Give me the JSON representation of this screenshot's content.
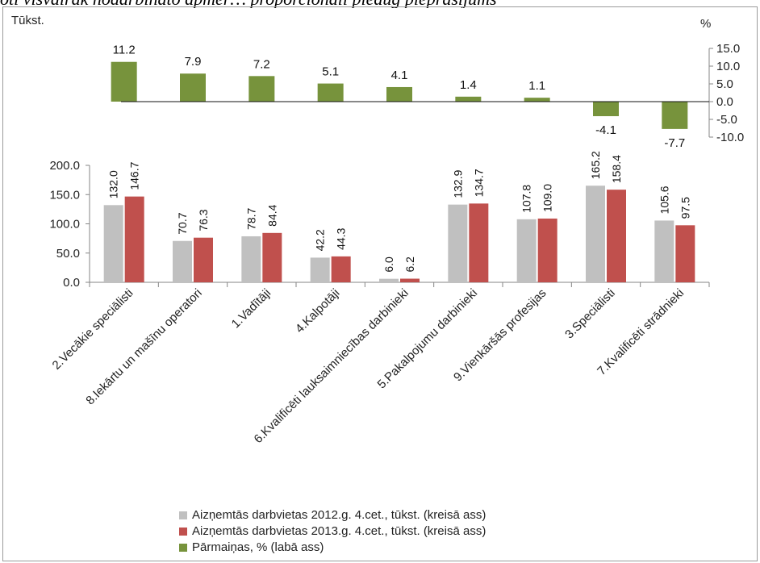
{
  "top_text": "oti visvairāk nodarbināto apmēr… proporcionāli pieaug pieprasījums",
  "chart_data": {
    "type": "bar",
    "left_axis_title": "Tūkst.",
    "right_axis_title": "%",
    "categories": [
      "2.Vecākie speciālisti",
      "8.Iekārtu un mašīnu operatori",
      "1.Vadītāji",
      "4.Kalpotāji",
      "6.Kvalificēti lauksaimniecības darbinieki",
      "5.Pakalpojumu darbinieki",
      "9.Vienkāršās  profesijas",
      "3.Speciālisti",
      "7.Kvalificēti strādnieki"
    ],
    "series": [
      {
        "name": "Aizņemtās darbvietas 2012.g. 4.cet., tūkst. (kreisā ass)",
        "axis": "left",
        "color": "#c0c0c0",
        "values": [
          132.0,
          70.7,
          78.7,
          42.2,
          6.0,
          132.9,
          107.8,
          165.2,
          105.6
        ],
        "labels": [
          "132.0",
          "70.7",
          "78.7",
          "42.2",
          "6.0",
          "132.9",
          "107.8",
          "165.2",
          "105.6"
        ]
      },
      {
        "name": "Aizņemtās darbvietas 2013.g. 4.cet., tūkst. (kreisā ass)",
        "axis": "left",
        "color": "#c0504d",
        "values": [
          146.7,
          76.3,
          84.4,
          44.3,
          6.2,
          134.7,
          109.0,
          158.4,
          97.5
        ],
        "labels": [
          "146.7",
          "76.3",
          "84.4",
          "44.3",
          "6.2",
          "134.7",
          "109.0",
          "158.4",
          "97.5"
        ]
      },
      {
        "name": "Pārmaiņas, % (labā ass)",
        "axis": "right",
        "color": "#77933c",
        "values": [
          11.2,
          7.9,
          7.2,
          5.1,
          4.1,
          1.4,
          1.1,
          -4.1,
          -7.7
        ],
        "labels": [
          "11.2",
          "7.9",
          "7.2",
          "5.1",
          "4.1",
          "1.4",
          "1.1",
          "-4.1",
          "-7.7"
        ]
      }
    ],
    "left_axis": {
      "ylim": [
        0,
        200
      ],
      "ticks": [
        "0.0",
        "50.0",
        "100.0",
        "150.0",
        "200.0"
      ]
    },
    "right_axis": {
      "ylim": [
        -10,
        15
      ],
      "ticks": [
        "15.0",
        "10.0",
        "5.0",
        "0.0",
        "-5.0",
        "-10.0"
      ]
    },
    "grid": false,
    "legend_position": "bottom"
  }
}
